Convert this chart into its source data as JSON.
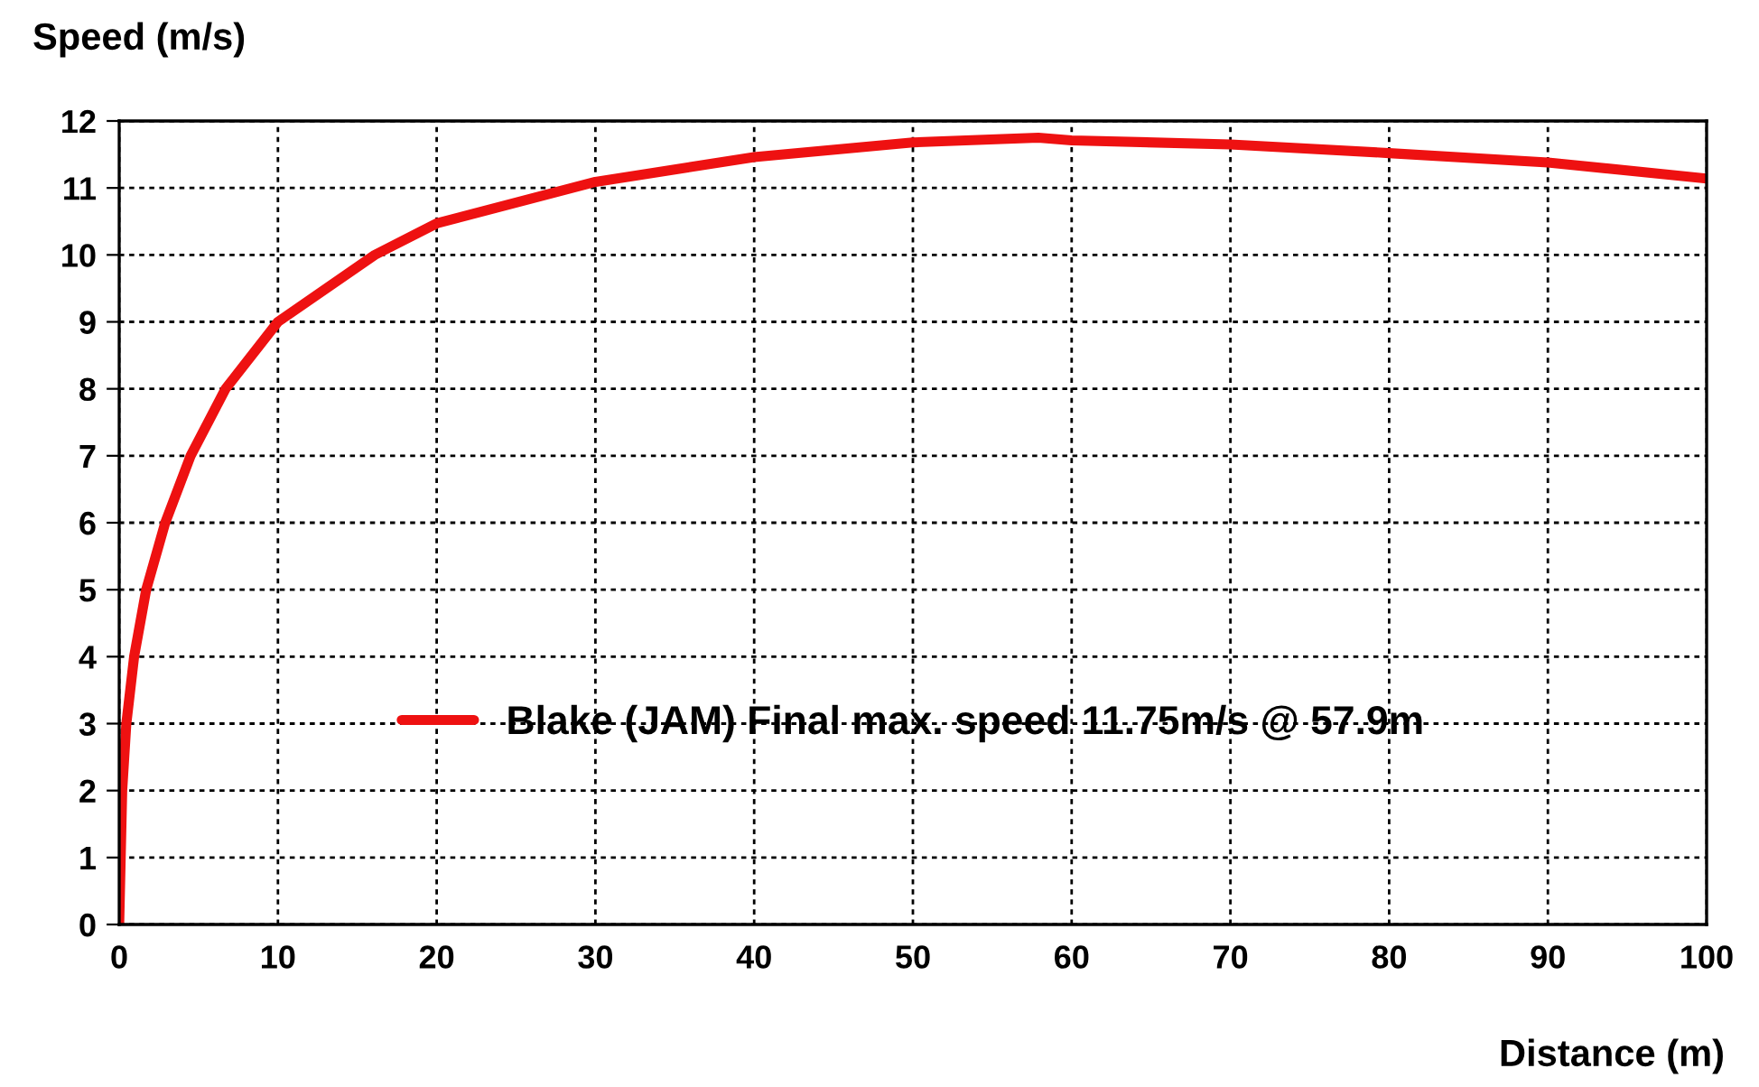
{
  "chart_data": {
    "type": "line",
    "xlabel": "Distance (m)",
    "ylabel": "Speed (m/s)",
    "series": [
      {
        "name": "Blake (JAM) Final max. speed 11.75m/s @ 57.9m",
        "color": "#ee1111",
        "x": [
          0,
          0.19,
          0.45,
          0.94,
          1.7,
          2.9,
          4.5,
          6.7,
          10,
          16.1,
          20,
          30,
          40,
          50,
          57.9,
          60,
          70,
          80,
          90,
          100
        ],
        "values": [
          0,
          2,
          3,
          4,
          5,
          6,
          7,
          8,
          9,
          10,
          10.47,
          11.09,
          11.46,
          11.68,
          11.75,
          11.71,
          11.65,
          11.52,
          11.38,
          11.14
        ]
      }
    ],
    "xlim": [
      0,
      100
    ],
    "xticks": [
      0,
      10,
      20,
      30,
      40,
      50,
      60,
      70,
      80,
      90,
      100
    ],
    "ylim": [
      0,
      12
    ],
    "yticks": [
      0,
      1,
      2,
      3,
      4,
      5,
      6,
      7,
      8,
      9,
      10,
      11,
      12
    ],
    "grid": true,
    "legend": "center",
    "line_style": "solid",
    "marker": "none"
  }
}
